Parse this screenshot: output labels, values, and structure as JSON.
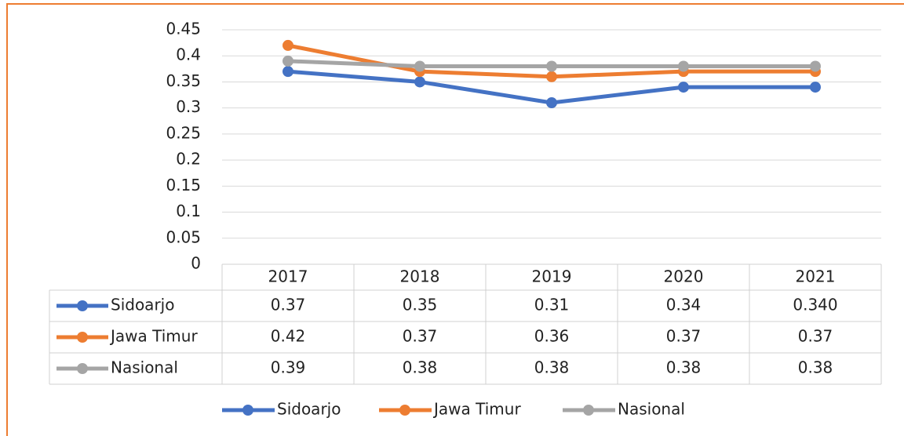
{
  "chart_data": {
    "type": "line",
    "categories": [
      "2017",
      "2018",
      "2019",
      "2020",
      "2021"
    ],
    "series": [
      {
        "name": "Sidoarjo",
        "color": "#4472c4",
        "values": [
          0.37,
          0.35,
          0.31,
          0.34,
          0.34
        ],
        "value_labels": [
          "0.37",
          "0.35",
          "0.31",
          "0.34",
          "0.340"
        ]
      },
      {
        "name": "Jawa Timur",
        "color": "#ed7d31",
        "values": [
          0.42,
          0.37,
          0.36,
          0.37,
          0.37
        ]
      },
      {
        "name": "Nasional",
        "color": "#a5a5a5",
        "values": [
          0.39,
          0.38,
          0.38,
          0.38,
          0.38
        ]
      }
    ],
    "ylim": [
      0,
      0.45
    ],
    "yticks": [
      0,
      0.05,
      0.1,
      0.15,
      0.2,
      0.25,
      0.3,
      0.35,
      0.4,
      0.45
    ],
    "grid": true
  }
}
